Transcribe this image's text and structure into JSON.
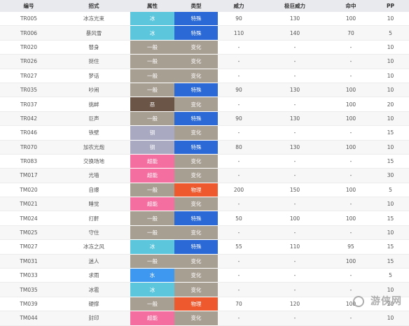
{
  "table": {
    "headers": {
      "code": "编号",
      "move": "招式",
      "attribute": "属性",
      "category": "类型",
      "power": "威力",
      "max_power": "极巨威力",
      "accuracy": "命中",
      "pp": "PP"
    },
    "rows": [
      {
        "code": "TR005",
        "move": "冰冻光束",
        "attribute": "冰",
        "category": "特殊",
        "power": "90",
        "max_power": "130",
        "accuracy": "100",
        "pp": "10"
      },
      {
        "code": "TR006",
        "move": "暴风雪",
        "attribute": "冰",
        "category": "特殊",
        "power": "110",
        "max_power": "140",
        "accuracy": "70",
        "pp": "5"
      },
      {
        "code": "TR020",
        "move": "替身",
        "attribute": "一般",
        "category": "变化",
        "power": "-",
        "max_power": "-",
        "accuracy": "-",
        "pp": "10"
      },
      {
        "code": "TR026",
        "move": "挺住",
        "attribute": "一般",
        "category": "变化",
        "power": "-",
        "max_power": "-",
        "accuracy": "-",
        "pp": "10"
      },
      {
        "code": "TR027",
        "move": "梦话",
        "attribute": "一般",
        "category": "变化",
        "power": "-",
        "max_power": "-",
        "accuracy": "-",
        "pp": "10"
      },
      {
        "code": "TR035",
        "move": "吵闹",
        "attribute": "一般",
        "category": "特殊",
        "power": "90",
        "max_power": "130",
        "accuracy": "100",
        "pp": "10"
      },
      {
        "code": "TR037",
        "move": "挑衅",
        "attribute": "恶",
        "category": "变化",
        "power": "-",
        "max_power": "-",
        "accuracy": "100",
        "pp": "20"
      },
      {
        "code": "TR042",
        "move": "巨声",
        "attribute": "一般",
        "category": "特殊",
        "power": "90",
        "max_power": "130",
        "accuracy": "100",
        "pp": "10"
      },
      {
        "code": "TR046",
        "move": "铁壁",
        "attribute": "钢",
        "category": "变化",
        "power": "-",
        "max_power": "-",
        "accuracy": "-",
        "pp": "15"
      },
      {
        "code": "TR070",
        "move": "加农光炮",
        "attribute": "钢",
        "category": "特殊",
        "power": "80",
        "max_power": "130",
        "accuracy": "100",
        "pp": "10"
      },
      {
        "code": "TR083",
        "move": "交换场地",
        "attribute": "超能",
        "category": "变化",
        "power": "-",
        "max_power": "-",
        "accuracy": "-",
        "pp": "15"
      },
      {
        "code": "TM017",
        "move": "光墙",
        "attribute": "超能",
        "category": "变化",
        "power": "-",
        "max_power": "-",
        "accuracy": "-",
        "pp": "30"
      },
      {
        "code": "TM020",
        "move": "自爆",
        "attribute": "一般",
        "category": "物理",
        "power": "200",
        "max_power": "150",
        "accuracy": "100",
        "pp": "5"
      },
      {
        "code": "TM021",
        "move": "睡觉",
        "attribute": "超能",
        "category": "变化",
        "power": "-",
        "max_power": "-",
        "accuracy": "-",
        "pp": "10"
      },
      {
        "code": "TM024",
        "move": "打鼾",
        "attribute": "一般",
        "category": "特殊",
        "power": "50",
        "max_power": "100",
        "accuracy": "100",
        "pp": "15"
      },
      {
        "code": "TM025",
        "move": "守住",
        "attribute": "一般",
        "category": "变化",
        "power": "-",
        "max_power": "-",
        "accuracy": "-",
        "pp": "10"
      },
      {
        "code": "TM027",
        "move": "冰冻之风",
        "attribute": "冰",
        "category": "特殊",
        "power": "55",
        "max_power": "110",
        "accuracy": "95",
        "pp": "15"
      },
      {
        "code": "TM031",
        "move": "迷人",
        "attribute": "一般",
        "category": "变化",
        "power": "-",
        "max_power": "-",
        "accuracy": "100",
        "pp": "15"
      },
      {
        "code": "TM033",
        "move": "求雨",
        "attribute": "水",
        "category": "变化",
        "power": "-",
        "max_power": "-",
        "accuracy": "-",
        "pp": "5"
      },
      {
        "code": "TM035",
        "move": "冰雹",
        "attribute": "冰",
        "category": "变化",
        "power": "-",
        "max_power": "-",
        "accuracy": "-",
        "pp": "10"
      },
      {
        "code": "TM039",
        "move": "硬撑",
        "attribute": "一般",
        "category": "物理",
        "power": "70",
        "max_power": "120",
        "accuracy": "100",
        "pp": "20"
      },
      {
        "code": "TM044",
        "move": "封印",
        "attribute": "超能",
        "category": "变化",
        "power": "-",
        "max_power": "-",
        "accuracy": "-",
        "pp": "10"
      }
    ]
  },
  "type_colors": {
    "冰": "#5bc6dc",
    "一般": "#a89f93",
    "恶": "#6b5547",
    "钢": "#a9a9c2",
    "超能": "#f56ea0",
    "水": "#3f98f0"
  },
  "category_colors": {
    "特殊": "#2b69d6",
    "变化": "#a89f93",
    "物理": "#ee5a2e"
  },
  "watermark": {
    "icon": "game-logo-icon",
    "text": "游侠网"
  }
}
